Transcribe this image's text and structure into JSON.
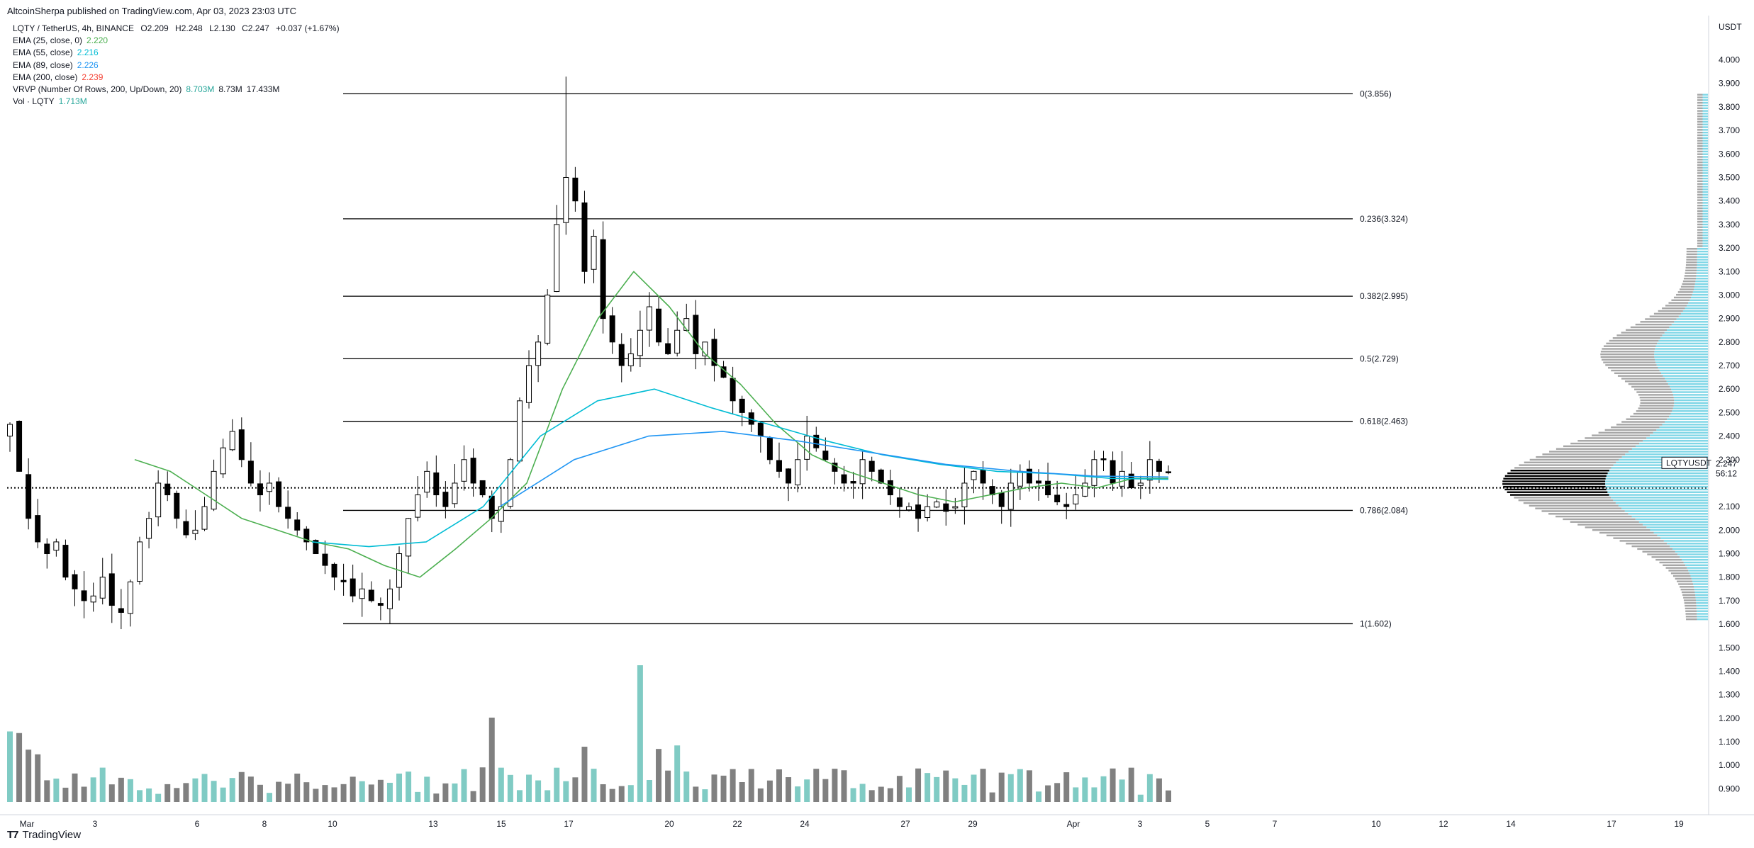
{
  "header": {
    "published": "AltcoinSherpa published on TradingView.com, Apr 03, 2023 23:03 UTC"
  },
  "legend": {
    "symbol_line": "LQTY / TetherUS, 4h, BINANCE",
    "ohlc": {
      "o": "O2.209",
      "h": "H2.248",
      "l": "L2.130",
      "c": "C2.247",
      "chg": "+0.037 (+1.67%)"
    },
    "indicators": [
      {
        "label": "EMA (25, close, 0)",
        "value": "2.220",
        "color": "#4caf50"
      },
      {
        "label": "EMA (55, close)",
        "value": "2.216",
        "color": "#00bcd4"
      },
      {
        "label": "EMA (89, close)",
        "value": "2.226",
        "color": "#2196f3"
      },
      {
        "label": "EMA (200, close)",
        "value": "2.239",
        "color": "#f44336"
      },
      {
        "label": "VRVP (Number Of Rows, 200, Up/Down, 20)",
        "value": "8.703M",
        "value2": "8.73M",
        "value3": "17.433M",
        "color": "#26a69a"
      },
      {
        "label": "Vol · LQTY",
        "value": "1.713M",
        "color": "#26a69a"
      }
    ]
  },
  "price_axis": {
    "unit": "USDT",
    "ticks": [
      "4.000",
      "3.900",
      "3.800",
      "3.700",
      "3.600",
      "3.500",
      "3.400",
      "3.300",
      "3.200",
      "3.100",
      "3.000",
      "2.900",
      "2.800",
      "2.700",
      "2.600",
      "2.500",
      "2.400",
      "2.300",
      "2.100",
      "2.000",
      "1.900",
      "1.800",
      "1.700",
      "1.600",
      "1.500",
      "1.400",
      "1.300",
      "1.200",
      "1.100",
      "1.000",
      "0.900"
    ],
    "symbol_tag": "LQTYUSDT",
    "last_price": "2.247",
    "countdown": "56:12"
  },
  "time_axis": {
    "ticks": [
      "Mar",
      "3",
      "6",
      "8",
      "10",
      "13",
      "15",
      "17",
      "20",
      "22",
      "24",
      "27",
      "29",
      "Apr",
      "3",
      "5",
      "7",
      "10",
      "12",
      "14",
      "17",
      "19"
    ]
  },
  "footer": {
    "brand": "TradingView"
  },
  "chart_data": {
    "type": "candlestick",
    "symbol": "LQTY / TetherUS",
    "interval": "4h",
    "exchange": "BINANCE",
    "ylim": [
      0.85,
      4.08
    ],
    "fib_levels": [
      {
        "label": "0(3.856)",
        "value": 3.856
      },
      {
        "label": "0.236(3.324)",
        "value": 3.324
      },
      {
        "label": "0.382(2.995)",
        "value": 2.995
      },
      {
        "label": "0.5(2.729)",
        "value": 2.729
      },
      {
        "label": "0.618(2.463)",
        "value": 2.463
      },
      {
        "label": "0.786(2.084)",
        "value": 2.084
      },
      {
        "label": "1(1.602)",
        "value": 1.602
      }
    ],
    "reference_price": 2.18,
    "close_path": [
      2.45,
      2.25,
      2.05,
      1.95,
      1.9,
      1.95,
      1.8,
      1.75,
      1.7,
      1.72,
      1.8,
      1.68,
      1.65,
      1.78,
      1.95,
      2.05,
      2.2,
      2.15,
      2.05,
      1.98,
      2.0,
      2.1,
      2.25,
      2.35,
      2.42,
      2.3,
      2.2,
      2.15,
      2.2,
      2.1,
      2.05,
      2.0,
      1.95,
      1.9,
      1.85,
      1.8,
      1.78,
      1.72,
      1.75,
      1.7,
      1.68,
      1.75,
      1.9,
      2.05,
      2.15,
      2.25,
      2.15,
      2.1,
      2.2,
      2.3,
      2.2,
      2.15,
      2.05,
      2.1,
      2.3,
      2.55,
      2.7,
      2.8,
      3.0,
      3.3,
      3.5,
      3.4,
      3.1,
      3.25,
      2.9,
      2.8,
      2.7,
      2.75,
      2.85,
      2.95,
      2.8,
      2.75,
      2.85,
      2.9,
      2.75,
      2.8,
      2.7,
      2.65,
      2.55,
      2.5,
      2.45,
      2.4,
      2.3,
      2.25,
      2.2,
      2.3,
      2.4,
      2.35,
      2.3,
      2.25,
      2.2,
      2.2,
      2.3,
      2.25,
      2.2,
      2.15,
      2.1,
      2.1,
      2.05,
      2.1,
      2.12,
      2.08,
      2.1,
      2.2,
      2.25,
      2.2,
      2.15,
      2.1,
      2.2,
      2.25,
      2.2,
      2.2,
      2.15,
      2.12,
      2.1,
      2.15,
      2.2,
      2.3,
      2.3,
      2.2,
      2.25,
      2.18,
      2.2,
      2.3,
      2.25,
      2.247
    ],
    "series": [
      {
        "name": "EMA (25, close, 0)",
        "color": "#4caf50",
        "values": [
          2.3,
          2.25,
          2.15,
          2.05,
          2.0,
          1.95,
          1.92,
          1.85,
          1.8,
          1.92,
          2.05,
          2.2,
          2.6,
          2.9,
          3.1,
          2.95,
          2.75,
          2.62,
          2.45,
          2.32,
          2.25,
          2.2,
          2.15,
          2.12,
          2.15,
          2.18,
          2.2,
          2.18,
          2.22,
          2.22
        ]
      },
      {
        "name": "EMA (55, close)",
        "color": "#00bcd4",
        "values": [
          1.95,
          1.93,
          1.95,
          2.1,
          2.4,
          2.55,
          2.6,
          2.52,
          2.45,
          2.38,
          2.32,
          2.28,
          2.25,
          2.24,
          2.22,
          2.216
        ]
      },
      {
        "name": "EMA (89, close)",
        "color": "#2196f3",
        "values": [
          2.1,
          2.3,
          2.4,
          2.42,
          2.38,
          2.33,
          2.28,
          2.25,
          2.23,
          2.226
        ]
      }
    ],
    "volume": {
      "name": "Vol · LQTY",
      "last": "1.713M"
    },
    "vrvp": {
      "name": "VRVP (Number Of Rows, 200, Up/Down, 20)",
      "up": "8.703M",
      "down": "8.73M",
      "total": "17.433M",
      "poc_price": 2.2
    }
  },
  "colors": {
    "up": "#ffffff",
    "down": "#000000",
    "vol_up": "#80cbc4",
    "vol_down": "#808080",
    "vrvp_up": "#7fd6e6",
    "vrvp_down": "#a6a6a6"
  }
}
